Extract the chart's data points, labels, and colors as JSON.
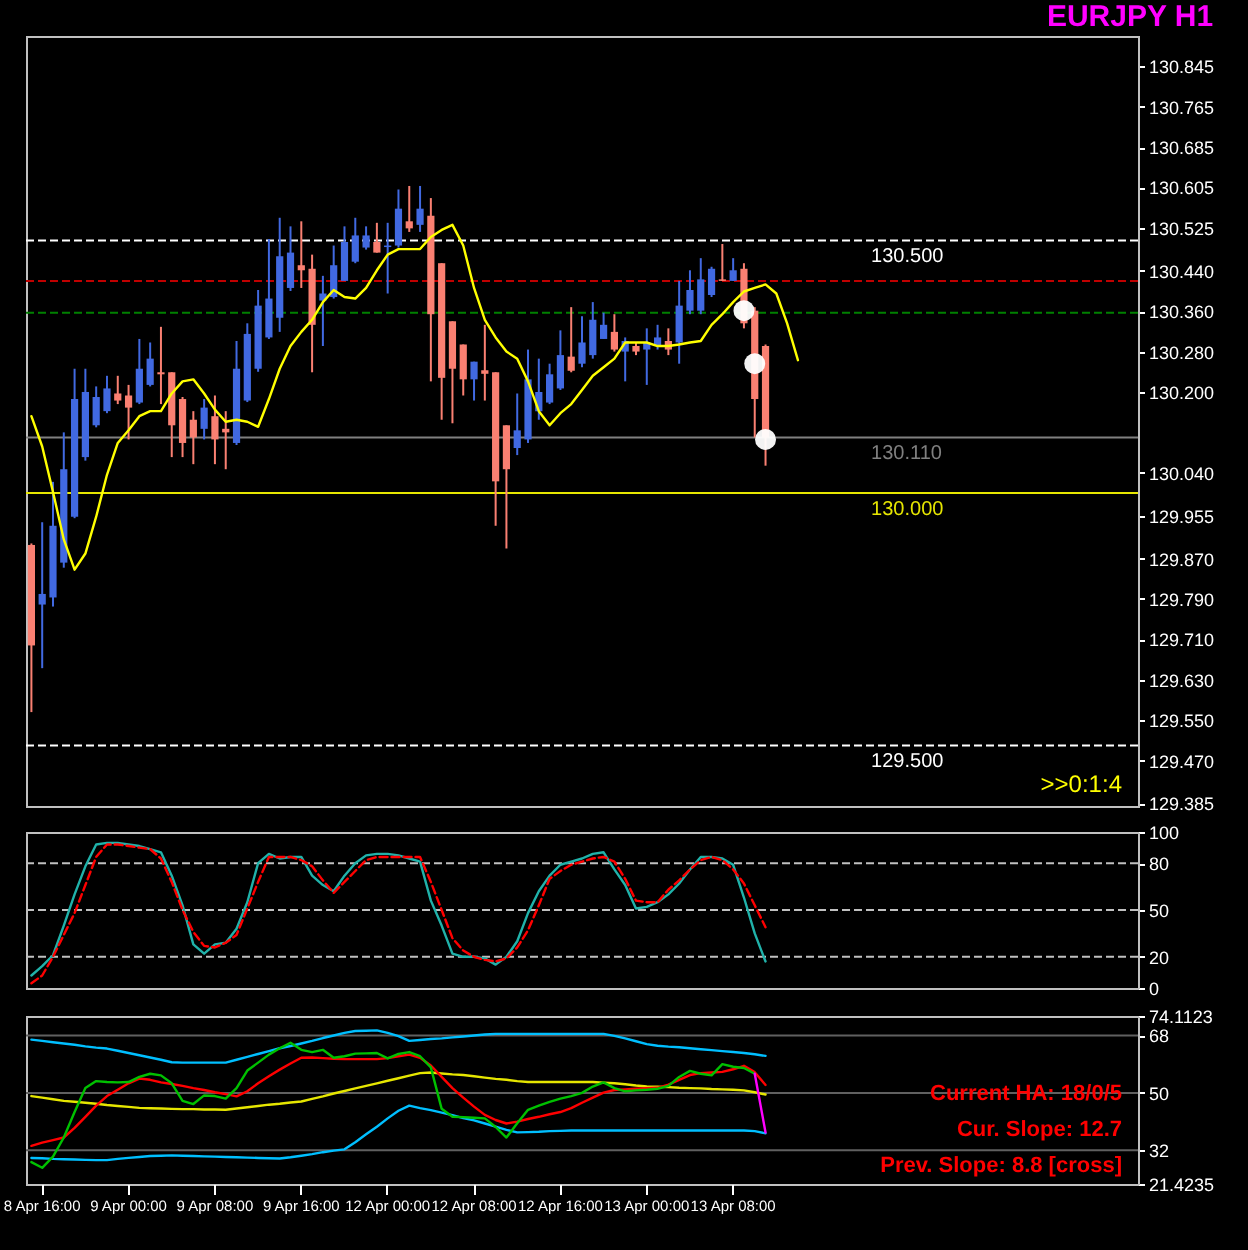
{
  "chart_data": [
    {
      "type": "candlestick",
      "title": "EURJPY H1",
      "tick_labels": "y",
      "categories": [
        null,
        null,
        null,
        null,
        null,
        null,
        null,
        null,
        null,
        null,
        null,
        null,
        null,
        null,
        null,
        null,
        null,
        null,
        null,
        null,
        null,
        null,
        null,
        null,
        null,
        null,
        null,
        null,
        null,
        null,
        null,
        null,
        null,
        null,
        null,
        null,
        null,
        null,
        null,
        null,
        null,
        null,
        null,
        null,
        null,
        null,
        null,
        null,
        null,
        null,
        null,
        null,
        null,
        null,
        null,
        null,
        null,
        null,
        null,
        null,
        null,
        null,
        null,
        null,
        null,
        null,
        null,
        null,
        null,
        null,
        null,
        null,
        null,
        null,
        null,
        null,
        null,
        null,
        null,
        null,
        null,
        null,
        null,
        null,
        null,
        null,
        null,
        null,
        null,
        null,
        null,
        null,
        null,
        null,
        null,
        null,
        null,
        null,
        null,
        null,
        null,
        null,
        null
      ],
      "ohlc": [
        [
          129.897,
          129.9,
          129.566,
          129.698
        ],
        [
          129.779,
          129.942,
          129.653,
          129.8
        ],
        [
          129.793,
          130.022,
          129.775,
          129.935
        ],
        [
          129.862,
          130.12,
          129.852,
          130.047
        ],
        [
          129.953,
          130.246,
          129.95,
          130.186
        ],
        [
          130.071,
          130.246,
          130.064,
          130.2
        ],
        [
          130.134,
          130.211,
          130.13,
          130.19
        ],
        [
          130.162,
          130.232,
          130.158,
          130.207
        ],
        [
          130.197,
          130.232,
          130.176,
          130.183
        ],
        [
          130.193,
          130.214,
          130.106,
          130.169
        ],
        [
          130.179,
          130.305,
          130.176,
          130.246
        ],
        [
          130.214,
          130.298,
          130.211,
          130.266
        ],
        [
          130.239,
          130.329,
          130.176,
          130.235
        ],
        [
          130.239,
          130.239,
          130.071,
          130.134
        ],
        [
          130.186,
          130.19,
          130.071,
          130.099
        ],
        [
          130.145,
          130.162,
          130.057,
          130.11
        ],
        [
          130.127,
          130.186,
          130.106,
          130.169
        ],
        [
          130.152,
          130.193,
          130.057,
          130.106
        ],
        [
          130.127,
          130.162,
          130.047,
          130.12
        ],
        [
          130.099,
          130.301,
          130.095,
          130.246
        ],
        [
          130.183,
          130.336,
          130.18,
          130.315
        ],
        [
          130.246,
          130.402,
          130.24,
          130.371
        ],
        [
          130.308,
          130.503,
          130.305,
          130.385
        ],
        [
          130.347,
          130.545,
          130.319,
          130.469
        ],
        [
          130.406,
          130.528,
          130.4,
          130.476
        ],
        [
          130.451,
          130.538,
          130.406,
          130.441
        ],
        [
          130.444,
          130.472,
          130.239,
          130.333
        ],
        [
          130.381,
          130.43,
          130.291,
          130.395
        ],
        [
          130.388,
          130.49,
          130.385,
          130.451
        ],
        [
          130.42,
          130.528,
          130.42,
          130.497
        ],
        [
          130.458,
          130.545,
          130.455,
          130.51
        ],
        [
          130.486,
          130.528,
          130.482,
          130.51
        ],
        [
          130.497,
          130.535,
          130.476,
          130.476
        ],
        [
          130.487,
          130.535,
          130.395,
          130.49
        ],
        [
          130.49,
          130.601,
          130.486,
          130.563
        ],
        [
          130.538,
          130.608,
          130.517,
          130.524
        ],
        [
          130.531,
          130.608,
          130.517,
          130.563
        ],
        [
          130.549,
          130.584,
          130.221,
          130.354
        ],
        [
          130.455,
          130.455,
          130.145,
          130.228
        ],
        [
          130.34,
          130.34,
          130.138,
          130.246
        ],
        [
          130.294,
          130.294,
          130.193,
          130.225
        ],
        [
          130.225,
          130.26,
          130.183,
          130.26
        ],
        [
          130.243,
          130.333,
          130.183,
          130.236
        ],
        [
          130.239,
          130.239,
          129.935,
          130.023
        ],
        [
          130.134,
          130.134,
          129.89,
          130.047
        ],
        [
          130.089,
          130.197,
          130.075,
          130.124
        ],
        [
          130.106,
          130.284,
          130.099,
          130.225
        ],
        [
          130.162,
          130.266,
          130.145,
          130.2
        ],
        [
          130.179,
          130.256,
          130.176,
          130.235
        ],
        [
          130.207,
          130.322,
          130.204,
          130.273
        ],
        [
          130.27,
          130.368,
          130.239,
          130.242
        ],
        [
          130.256,
          130.35,
          130.249,
          130.298
        ],
        [
          130.273,
          130.378,
          130.266,
          130.343
        ],
        [
          130.305,
          130.357,
          130.305,
          130.333
        ],
        [
          130.319,
          130.354,
          130.28,
          130.284
        ],
        [
          130.28,
          130.308,
          130.221,
          130.301
        ],
        [
          130.291,
          130.298,
          130.273,
          130.28
        ],
        [
          130.284,
          130.326,
          130.214,
          130.298
        ],
        [
          130.291,
          130.333,
          130.284,
          130.308
        ],
        [
          130.301,
          130.326,
          130.273,
          130.284
        ],
        [
          130.298,
          130.42,
          130.256,
          130.371
        ],
        [
          130.361,
          130.441,
          130.354,
          130.402
        ],
        [
          130.361,
          130.465,
          130.354,
          130.423
        ],
        [
          130.392,
          130.448,
          130.388,
          130.444
        ],
        [
          130.423,
          130.493,
          130.42,
          130.42
        ],
        [
          130.42,
          130.465,
          130.42,
          130.441
        ],
        [
          130.444,
          130.455,
          130.326,
          130.336
        ],
        [
          130.361,
          130.368,
          130.11,
          130.186
        ],
        [
          130.291,
          130.294,
          130.054,
          130.11
        ],
        null,
        null,
        null,
        null,
        null,
        null,
        null,
        null,
        null,
        null,
        null,
        null,
        null,
        null,
        null,
        null,
        null,
        null,
        null,
        null,
        null,
        null,
        null,
        null,
        null,
        null,
        null,
        null,
        null,
        null,
        null,
        null,
        null,
        null
      ],
      "colors": [
        "#fa8072",
        "#4169e1",
        "#4169e1",
        "#4169e1",
        "#4169e1",
        "#4169e1",
        "#4169e1",
        "#4169e1",
        "#fa8072",
        "#fa8072",
        "#4169e1",
        "#4169e1",
        "#fa8072",
        "#fa8072",
        "#fa8072",
        "#fa8072",
        "#4169e1",
        "#fa8072",
        "#fa8072",
        "#4169e1",
        "#4169e1",
        "#4169e1",
        "#4169e1",
        "#4169e1",
        "#4169e1",
        "#fa8072",
        "#fa8072",
        "#4169e1",
        "#4169e1",
        "#4169e1",
        "#4169e1",
        "#4169e1",
        "#fa8072",
        "#4169e1",
        "#4169e1",
        "#fa8072",
        "#4169e1",
        "#fa8072",
        "#fa8072",
        "#fa8072",
        "#fa8072",
        "#4169e1",
        "#fa8072",
        "#fa8072",
        "#fa8072",
        "#4169e1",
        "#4169e1",
        "#4169e1",
        "#4169e1",
        "#4169e1",
        "#fa8072",
        "#4169e1",
        "#4169e1",
        "#4169e1",
        "#fa8072",
        "#4169e1",
        "#fa8072",
        "#4169e1",
        "#4169e1",
        "#fa8072",
        "#4169e1",
        "#4169e1",
        "#4169e1",
        "#4169e1",
        "#fa8072",
        "#4169e1",
        "#fa8072",
        "#fa8072",
        "#fa8072",
        null,
        null,
        null,
        null,
        null,
        null,
        null,
        null,
        null,
        null,
        null,
        null,
        null,
        null,
        null,
        null,
        null,
        null,
        null,
        null,
        null,
        null,
        null,
        null,
        null,
        null,
        null,
        null,
        null,
        null,
        null,
        null,
        null,
        null
      ],
      "series": [
        {
          "type": "line",
          "color": "#ffff00",
          "values": [
            130.152,
            130.092,
            130.002,
            129.908,
            129.848,
            129.88,
            129.953,
            130.036,
            130.099,
            130.124,
            130.152,
            130.162,
            130.162,
            130.197,
            130.221,
            130.225,
            130.197,
            130.165,
            130.141,
            130.145,
            130.141,
            130.131,
            130.186,
            130.246,
            130.291,
            130.319,
            130.343,
            130.378,
            130.402,
            130.388,
            130.385,
            130.406,
            130.441,
            130.472,
            130.483,
            130.483,
            130.483,
            130.507,
            130.521,
            130.531,
            130.49,
            130.406,
            130.343,
            130.308,
            130.28,
            130.266,
            130.221,
            130.162,
            130.134,
            130.158,
            130.176,
            130.204,
            130.232,
            130.249,
            130.266,
            130.298,
            130.298,
            130.298,
            130.291,
            130.291,
            130.294,
            130.298,
            130.301,
            130.333,
            130.354,
            130.378,
            130.399,
            130.406,
            130.413,
            130.395,
            130.336,
            130.263,
            null,
            null,
            null,
            null,
            null,
            null,
            null,
            null,
            null,
            null,
            null,
            null,
            null,
            null,
            null,
            null,
            null,
            null,
            null,
            null,
            null,
            null,
            null,
            null,
            null,
            null,
            null,
            null,
            null,
            null,
            null
          ]
        },
        {
          "type": "scatter",
          "color": "#ffffff",
          "marker": "circle",
          "values": [
            null,
            null,
            null,
            null,
            null,
            null,
            null,
            null,
            null,
            null,
            null,
            null,
            null,
            null,
            null,
            null,
            null,
            null,
            null,
            null,
            null,
            null,
            null,
            null,
            null,
            null,
            null,
            null,
            null,
            null,
            null,
            null,
            null,
            null,
            null,
            null,
            null,
            null,
            null,
            null,
            null,
            null,
            null,
            null,
            null,
            null,
            null,
            null,
            null,
            null,
            null,
            null,
            null,
            null,
            null,
            null,
            null,
            null,
            null,
            null,
            null,
            null,
            null,
            null,
            null,
            null,
            130.361,
            130.256,
            130.106,
            null,
            null,
            null,
            null,
            null,
            null,
            null,
            null,
            null,
            null,
            null,
            null,
            null,
            null,
            null,
            null,
            null,
            null,
            null,
            null,
            null,
            null,
            null,
            null,
            null,
            null,
            null,
            null,
            null,
            null,
            null,
            null,
            null,
            null
          ]
        }
      ],
      "ylim": [
        129.38,
        130.905
      ],
      "yticks": [
        {
          "value": 129.385,
          "label": "129.385"
        },
        {
          "value": 129.47,
          "label": "129.470"
        },
        {
          "value": 129.55,
          "label": "129.550"
        },
        {
          "value": 129.63,
          "label": "129.630"
        },
        {
          "value": 129.71,
          "label": "129.710"
        },
        {
          "value": 129.79,
          "label": "129.790"
        },
        {
          "value": 129.87,
          "label": "129.870"
        },
        129.955,
        {
          "value": 130.04,
          "label": "130.040"
        },
        {
          "value": 130.2,
          "label": "130.200"
        },
        {
          "value": 130.28,
          "label": "130.280"
        },
        {
          "value": 130.36,
          "label": "130.360"
        },
        {
          "value": 130.44,
          "label": "130.440"
        },
        130.525,
        130.605,
        130.685,
        130.765,
        130.845
      ],
      "ref_lines": [
        {
          "axis": "y",
          "value": 130.42,
          "color": "#c00000",
          "line_style": "dashed"
        },
        {
          "axis": "y",
          "value": 130.357,
          "color": "#008000",
          "line_style": "dashed"
        },
        {
          "axis": "y",
          "value": 130.11,
          "label": "130.110",
          "color": "#808080"
        },
        {
          "axis": "y",
          "value": 130.5,
          "label": "130.500",
          "color": "#ffffff",
          "line_style": "dashed"
        },
        {
          "axis": "y",
          "value": 130,
          "label": "130.000",
          "color": "#e6e600"
        },
        {
          "axis": "y",
          "value": 129.5,
          "label": "129.500",
          "color": "#ffffff",
          "line_style": "dashed"
        }
      ],
      "annotations": [
        ">>0:1:4"
      ]
    },
    {
      "type": "line",
      "tick_labels": "y",
      "categories": [
        null,
        null,
        null,
        null,
        null,
        null,
        null,
        null,
        null,
        null,
        null,
        null,
        null,
        null,
        null,
        null,
        null,
        null,
        null,
        null,
        null,
        null,
        null,
        null,
        null,
        null,
        null,
        null,
        null,
        null,
        null,
        null,
        null,
        null,
        null,
        null,
        null,
        null,
        null,
        null,
        null,
        null,
        null,
        null,
        null,
        null,
        null,
        null,
        null,
        null,
        null,
        null,
        null,
        null,
        null,
        null,
        null,
        null,
        null,
        null,
        null,
        null,
        null,
        null,
        null,
        null,
        null,
        null,
        null,
        null,
        null,
        null,
        null,
        null,
        null,
        null,
        null,
        null,
        null,
        null,
        null,
        null,
        null,
        null,
        null,
        null,
        null,
        null,
        null,
        null,
        null,
        null,
        null,
        null,
        null,
        null,
        null,
        null,
        null,
        null,
        null,
        null,
        null
      ],
      "series": [
        {
          "color": "#20b2aa",
          "values": [
            8,
            14,
            21,
            40,
            60,
            78,
            92,
            93,
            93,
            92,
            91,
            89,
            87,
            72,
            53,
            28,
            22,
            28,
            29,
            38,
            55,
            80,
            86,
            83,
            84,
            84,
            72,
            66,
            62,
            72,
            80,
            85,
            86,
            86,
            85,
            83,
            81,
            56,
            40,
            22,
            20,
            20,
            19,
            15,
            20,
            30,
            48,
            62,
            72,
            79,
            81,
            83,
            86,
            87,
            76,
            66,
            51,
            52,
            55,
            60,
            67,
            76,
            84,
            84,
            83,
            79,
            58,
            35,
            17,
            null,
            null,
            null,
            null,
            null,
            null,
            null,
            null,
            null,
            null,
            null,
            null,
            null,
            null,
            null,
            null,
            null,
            null,
            null,
            null,
            null,
            null,
            null,
            null,
            null,
            null,
            null,
            null,
            null,
            null,
            null,
            null,
            null,
            null
          ]
        },
        {
          "color": "#ff0000",
          "line_style": "dashed",
          "values": [
            3,
            8,
            20,
            34,
            48,
            66,
            84,
            92,
            92,
            91,
            90,
            89,
            83,
            68,
            50,
            36,
            27,
            26,
            29,
            34,
            51,
            68,
            84,
            84,
            84,
            82,
            78,
            69,
            61,
            68,
            75,
            82,
            84,
            84,
            84,
            84,
            84,
            68,
            50,
            32,
            24,
            20,
            18,
            17,
            19,
            26,
            37,
            53,
            70,
            75,
            79,
            81,
            83,
            84,
            81,
            70,
            56,
            55,
            55,
            63,
            69,
            76,
            82,
            84,
            82,
            76,
            67,
            53,
            39,
            null,
            null,
            null,
            null,
            null,
            null,
            null,
            null,
            null,
            null,
            null,
            null,
            null,
            null,
            null,
            null,
            null,
            null,
            null,
            null,
            null,
            null,
            null,
            null,
            null,
            null,
            null,
            null,
            null,
            null,
            null,
            null,
            null,
            null
          ]
        }
      ],
      "ylim": [
        0,
        100
      ],
      "yticks": [
        0,
        20,
        50,
        80,
        100
      ],
      "ref_lines": [
        {
          "axis": "y",
          "value": 20,
          "color": "#c0c0c0",
          "line_style": "dashed"
        },
        {
          "axis": "y",
          "value": 50,
          "color": "#c0c0c0",
          "line_style": "dashed"
        },
        {
          "axis": "y",
          "value": 80,
          "color": "#c0c0c0",
          "line_style": "dashed"
        }
      ]
    },
    {
      "type": "line",
      "categories": [
        null,
        "8 Apr 16:00",
        null,
        null,
        null,
        null,
        null,
        null,
        null,
        "9 Apr 00:00",
        null,
        null,
        null,
        null,
        null,
        null,
        null,
        "9 Apr 08:00",
        null,
        null,
        null,
        null,
        null,
        null,
        null,
        "9 Apr 16:00",
        null,
        null,
        null,
        null,
        null,
        null,
        null,
        "12 Apr 00:00",
        null,
        null,
        null,
        null,
        null,
        null,
        null,
        "12 Apr 08:00",
        null,
        null,
        null,
        null,
        null,
        null,
        null,
        "12 Apr 16:00",
        null,
        null,
        null,
        null,
        null,
        null,
        null,
        "13 Apr 00:00",
        null,
        null,
        null,
        null,
        null,
        null,
        null,
        "13 Apr 08:00",
        null,
        null,
        null,
        null,
        null,
        null,
        null,
        null,
        null,
        null,
        null,
        null,
        null,
        null,
        null,
        null,
        null,
        null,
        null,
        null,
        null,
        null,
        null,
        null,
        null,
        null,
        null,
        null,
        null,
        null,
        null,
        null,
        null,
        null,
        null,
        null,
        null
      ],
      "series": [
        {
          "color": "#00bfff",
          "values": [
            66.7,
            66.3,
            65.9,
            65.5,
            65.1,
            64.6,
            64.2,
            63.9,
            63.2,
            62.5,
            61.8,
            61.1,
            60.4,
            59.6,
            59.5,
            59.5,
            59.5,
            59.5,
            59.5,
            60.4,
            61.3,
            62.2,
            63.1,
            64,
            64.7,
            65.5,
            66.3,
            67.2,
            68,
            68.8,
            69.4,
            69.5,
            69.6,
            68.8,
            67.8,
            66.3,
            66.6,
            66.9,
            67.1,
            67.4,
            67.7,
            68,
            68.3,
            68.5,
            68.5,
            68.5,
            68.5,
            68.5,
            68.5,
            68.5,
            68.5,
            68.5,
            68.5,
            68.5,
            67.9,
            67.1,
            66.2,
            65.3,
            64.8,
            64.5,
            64.3,
            64,
            63.7,
            63.4,
            63.1,
            62.8,
            62.5,
            62.1,
            61.6,
            null,
            null,
            null,
            null,
            null,
            null,
            null,
            null,
            null,
            null,
            null,
            null,
            null,
            null,
            null,
            null,
            null,
            null,
            null,
            null,
            null,
            null,
            null,
            null,
            null,
            null,
            null,
            null,
            null,
            null,
            null,
            null,
            null,
            null
          ]
        },
        {
          "color": "#00bfff",
          "values": [
            29.6,
            29.5,
            29.3,
            29.2,
            29.1,
            29,
            28.9,
            28.9,
            29.3,
            29.6,
            29.9,
            30.2,
            30.3,
            30.4,
            30.3,
            30.2,
            30.1,
            30,
            29.9,
            29.8,
            29.7,
            29.6,
            29.5,
            29.4,
            29.8,
            30.3,
            30.8,
            31.4,
            31.9,
            32.3,
            34.5,
            37,
            39.4,
            42,
            44.4,
            46,
            45.2,
            44.6,
            43.8,
            43,
            42.1,
            41.4,
            40.4,
            39.4,
            38.4,
            37.6,
            37.7,
            37.8,
            38,
            38.1,
            38.2,
            38.2,
            38.2,
            38.2,
            38.2,
            38.2,
            38.2,
            38.2,
            38.2,
            38.2,
            38.2,
            38.2,
            38.2,
            38.2,
            38.2,
            38.2,
            38.2,
            38,
            37.3,
            null,
            null,
            null,
            null,
            null,
            null,
            null,
            null,
            null,
            null,
            null,
            null,
            null,
            null,
            null,
            null,
            null,
            null,
            null,
            null,
            null,
            null,
            null,
            null,
            null,
            null,
            null,
            null,
            null,
            null,
            null,
            null,
            null,
            null
          ]
        },
        {
          "color": "#e6e600",
          "values": [
            49,
            48.5,
            48,
            47.5,
            47.2,
            46.9,
            46.6,
            46.2,
            45.9,
            45.6,
            45.3,
            45.2,
            45.1,
            45,
            44.9,
            44.9,
            44.8,
            44.8,
            44.7,
            45.1,
            45.5,
            45.9,
            46.3,
            46.6,
            47,
            47.3,
            48.1,
            48.9,
            49.8,
            50.6,
            51.4,
            52.2,
            53,
            53.8,
            54.6,
            55.4,
            56.2,
            56.4,
            56.1,
            55.8,
            55.6,
            55.2,
            54.8,
            54.4,
            54.1,
            53.7,
            53.4,
            53.4,
            53.4,
            53.4,
            53.4,
            53.4,
            53.4,
            53.2,
            53,
            52.7,
            52.3,
            52,
            51.9,
            51.8,
            51.6,
            51.5,
            51.4,
            51.2,
            51.1,
            51,
            50.8,
            50.2,
            49.5,
            null,
            null,
            null,
            null,
            null,
            null,
            null,
            null,
            null,
            null,
            null,
            null,
            null,
            null,
            null,
            null,
            null,
            null,
            null,
            null,
            null,
            null,
            null,
            null,
            null,
            null,
            null,
            null,
            null,
            null,
            null,
            null,
            null,
            null
          ]
        },
        {
          "color": "#ff0000",
          "values": [
            33.4,
            34.4,
            35.2,
            36,
            39,
            42.5,
            46,
            49,
            51,
            53,
            54.5,
            54.1,
            53.3,
            52.8,
            52.2,
            51.5,
            50.9,
            50.2,
            49.6,
            48.9,
            50.5,
            53,
            55.2,
            57.3,
            59.2,
            61,
            61.1,
            60.9,
            60.7,
            60.6,
            60.6,
            60.6,
            60.6,
            60.9,
            61.5,
            62,
            61,
            58.6,
            55,
            51.5,
            48.5,
            45.7,
            43.1,
            41.5,
            40.4,
            41,
            41.8,
            42.5,
            43.3,
            44,
            45.2,
            46.9,
            48.5,
            50.1,
            50.9,
            51.1,
            51.3,
            51.5,
            51.6,
            52.6,
            54.1,
            55.6,
            56.2,
            56.4,
            56.6,
            57.4,
            58.5,
            56.5,
            52.5,
            null,
            null,
            null,
            null,
            null,
            null,
            null,
            null,
            null,
            null,
            null,
            null,
            null,
            null,
            null,
            null,
            null,
            null,
            null,
            null,
            null,
            null,
            null,
            null,
            null,
            null,
            null,
            null,
            null,
            null,
            null,
            null,
            null,
            null
          ]
        },
        {
          "color": "#00c000",
          "values": [
            28.3,
            26.5,
            30,
            36,
            44,
            51.5,
            53.7,
            53.4,
            53.3,
            53.4,
            55,
            56,
            55.5,
            53,
            47.5,
            46.5,
            49.2,
            49,
            48.2,
            51.5,
            57,
            59.5,
            62,
            64,
            65.7,
            63.5,
            62.8,
            63.5,
            61,
            61.5,
            62.3,
            62.4,
            62.5,
            60.8,
            62.2,
            62.8,
            61.5,
            58,
            45,
            42.5,
            42.4,
            42.2,
            42,
            39.3,
            36,
            40.5,
            44.7,
            46,
            47.2,
            48.2,
            49,
            50,
            52,
            53.3,
            51.5,
            50.5,
            50.8,
            51,
            51.3,
            52.2,
            55,
            56.9,
            56,
            55.5,
            59,
            58.2,
            57.8,
            56,
            null,
            null,
            null,
            null,
            null,
            null,
            null,
            null,
            null,
            null,
            null,
            null,
            null,
            null,
            null,
            null,
            null,
            null,
            null,
            null,
            null,
            null,
            null,
            null,
            null,
            null,
            null,
            null,
            null,
            null,
            null,
            null,
            null,
            null,
            null
          ]
        },
        {
          "color": "#ff00ff",
          "values": [
            null,
            null,
            null,
            null,
            null,
            null,
            null,
            null,
            null,
            null,
            null,
            null,
            null,
            null,
            null,
            null,
            null,
            null,
            null,
            null,
            null,
            null,
            null,
            null,
            null,
            null,
            null,
            null,
            null,
            null,
            null,
            null,
            null,
            null,
            null,
            null,
            null,
            null,
            null,
            null,
            null,
            null,
            null,
            null,
            null,
            null,
            null,
            null,
            null,
            null,
            null,
            null,
            null,
            null,
            null,
            null,
            null,
            null,
            null,
            null,
            null,
            null,
            null,
            null,
            null,
            null,
            null,
            56,
            37.6,
            null,
            null,
            null,
            null,
            null,
            null,
            null,
            null,
            null,
            null,
            null,
            null,
            null,
            null,
            null,
            null,
            null,
            null,
            null,
            null,
            null,
            null,
            null,
            null,
            null,
            null,
            null,
            null,
            null,
            null,
            null,
            null,
            null,
            null
          ]
        }
      ],
      "ylim": [
        21.4235,
        74.1123
      ],
      "yticks": [
        21.4235,
        32,
        50,
        68,
        74.1123
      ],
      "ref_lines": [
        {
          "axis": "y",
          "value": 68,
          "color": "#606060"
        },
        {
          "axis": "y",
          "value": 50,
          "color": "#606060"
        },
        {
          "axis": "y",
          "value": 32,
          "color": "#606060"
        }
      ],
      "annotations": [
        "Current HA: 18/0/5",
        "Cur. Slope: 12.7",
        "Prev. Slope: 8.8 [cross]"
      ]
    }
  ]
}
